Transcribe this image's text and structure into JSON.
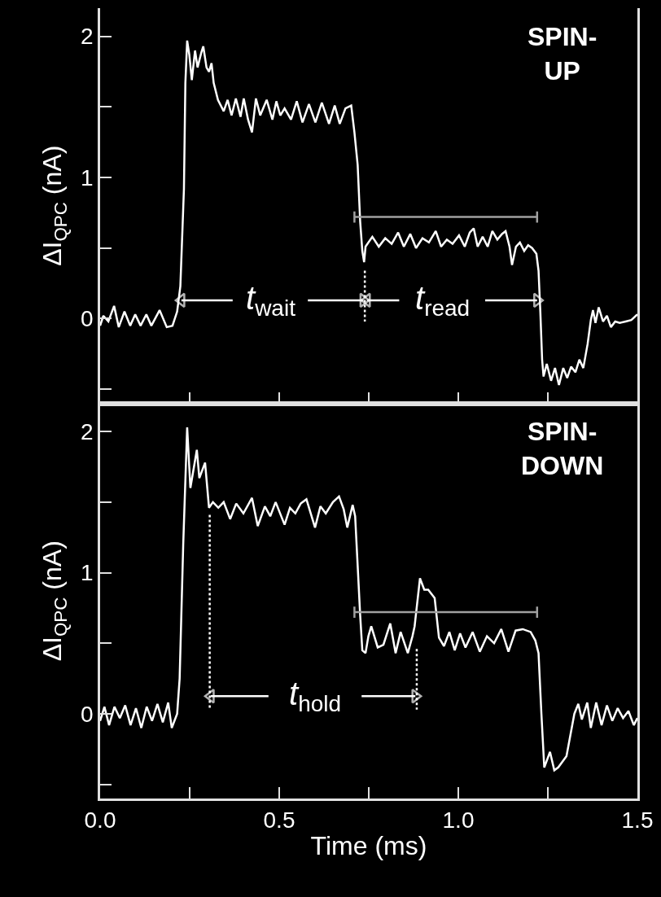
{
  "chart_data": [
    {
      "type": "line",
      "ylabel": "ΔI$_{QPC}$ (nA)",
      "line_style": "solid",
      "tick_labels": "y",
      "xlim": [
        0,
        1.5
      ],
      "xticks": [
        {
          "value": 0,
          "label": null
        },
        {
          "value": 0.25,
          "label": null
        },
        {
          "value": 0.5,
          "label": null
        },
        {
          "value": 0.75,
          "label": null
        },
        {
          "value": 1.0,
          "label": null
        },
        {
          "value": 1.25,
          "label": null
        },
        {
          "value": 1.5,
          "label": null
        }
      ],
      "ylim": [
        -0.6,
        2.2
      ],
      "yticks": [
        {
          "value": -0.5,
          "label": null
        },
        0,
        {
          "value": 0.5,
          "label": null
        },
        1,
        {
          "value": 1.5,
          "label": null
        },
        2
      ],
      "annotations": [
        "SPIN-\nUP",
        "t$_{wait}$",
        "t$_{read}$"
      ],
      "series": [
        {
          "type": "line",
          "color": "#ffffff",
          "x": [
            0,
            0.009,
            0.023,
            0.039,
            0.052,
            0.068,
            0.084,
            0.098,
            0.113,
            0.129,
            0.143,
            0.166,
            0.186,
            0.202,
            0.215,
            0.224,
            0.234,
            0.238,
            0.243,
            0.249,
            0.256,
            0.265,
            0.272,
            0.283,
            0.288,
            0.297,
            0.304,
            0.311,
            0.317,
            0.329,
            0.345,
            0.356,
            0.367,
            0.379,
            0.392,
            0.401,
            0.413,
            0.424,
            0.435,
            0.447,
            0.465,
            0.481,
            0.492,
            0.503,
            0.515,
            0.533,
            0.549,
            0.565,
            0.583,
            0.601,
            0.619,
            0.639,
            0.655,
            0.669,
            0.685,
            0.701,
            0.71,
            0.719,
            0.726,
            0.732,
            0.737,
            0.741,
            0.76,
            0.778,
            0.796,
            0.814,
            0.832,
            0.848,
            0.866,
            0.882,
            0.9,
            0.918,
            0.937,
            0.952,
            0.968,
            0.984,
            1.002,
            1.018,
            1.032,
            1.043,
            1.054,
            1.068,
            1.082,
            1.095,
            1.109,
            1.122,
            1.132,
            1.143,
            1.15,
            1.161,
            1.172,
            1.184,
            1.195,
            1.206,
            1.218,
            1.224,
            1.229,
            1.234,
            1.238,
            1.247,
            1.259,
            1.27,
            1.281,
            1.293,
            1.304,
            1.315,
            1.327,
            1.338,
            1.349,
            1.361,
            1.37,
            1.376,
            1.383,
            1.392,
            1.404,
            1.415,
            1.426,
            1.438,
            1.451,
            1.467,
            1.483,
            1.5
          ],
          "values": [
            -0.05,
            0.02,
            -0.02,
            0.09,
            -0.06,
            0.05,
            -0.05,
            0.03,
            -0.05,
            0.03,
            -0.05,
            0.06,
            -0.06,
            -0.05,
            0.05,
            0.23,
            0.92,
            1.67,
            1.97,
            1.87,
            1.69,
            1.9,
            1.78,
            1.89,
            1.93,
            1.78,
            1.75,
            1.81,
            1.67,
            1.55,
            1.47,
            1.55,
            1.44,
            1.56,
            1.43,
            1.56,
            1.41,
            1.32,
            1.56,
            1.44,
            1.55,
            1.41,
            1.54,
            1.44,
            1.49,
            1.41,
            1.54,
            1.39,
            1.52,
            1.39,
            1.53,
            1.38,
            1.51,
            1.38,
            1.49,
            1.51,
            1.32,
            1.09,
            0.69,
            0.48,
            0.4,
            0.51,
            0.58,
            0.51,
            0.57,
            0.53,
            0.61,
            0.51,
            0.6,
            0.5,
            0.57,
            0.54,
            0.62,
            0.51,
            0.56,
            0.53,
            0.59,
            0.51,
            0.61,
            0.64,
            0.51,
            0.58,
            0.51,
            0.62,
            0.56,
            0.6,
            0.62,
            0.51,
            0.38,
            0.51,
            0.54,
            0.48,
            0.52,
            0.5,
            0.46,
            0.34,
            0.05,
            -0.29,
            -0.41,
            -0.32,
            -0.44,
            -0.35,
            -0.47,
            -0.35,
            -0.42,
            -0.34,
            -0.38,
            -0.29,
            -0.35,
            -0.18,
            -0.01,
            0.06,
            -0.03,
            0.08,
            -0.02,
            0.02,
            -0.06,
            -0.02,
            -0.03,
            -0.02,
            -0.01,
            0.03
          ]
        },
        {
          "type": "line",
          "color": "#a0a0a0",
          "x": [
            0.71,
            0.71,
            0.71,
            1.22,
            1.22,
            1.22
          ],
          "values": [
            0.76,
            0.68,
            0.72,
            0.72,
            0.76,
            0.68
          ]
        },
        {
          "type": "line",
          "color": "#ffffff",
          "line_style": "dotted",
          "x": [
            0.739,
            0.739
          ],
          "values": [
            0.34,
            -0.02
          ]
        },
        {
          "type": "line",
          "color": "#ffffff",
          "marker": "triangle",
          "x": [
            0.37,
            0.227
          ],
          "values": [
            0.13,
            0.13
          ]
        },
        {
          "type": "line",
          "color": "#ffffff",
          "marker": "triangle",
          "x": [
            0.58,
            0.735
          ],
          "values": [
            0.13,
            0.13
          ]
        },
        {
          "type": "line",
          "color": "#ffffff",
          "marker": "triangle",
          "x": [
            0.835,
            0.745
          ],
          "values": [
            0.13,
            0.13
          ]
        },
        {
          "type": "line",
          "color": "#ffffff",
          "marker": "triangle",
          "x": [
            1.075,
            1.22
          ],
          "values": [
            0.13,
            0.13
          ]
        }
      ]
    },
    {
      "type": "line",
      "ylabel": "ΔI$_{QPC}$ (nA)",
      "xlabel": "Time (ms)",
      "line_style": "solid",
      "xlim": [
        0,
        1.5
      ],
      "xticks": [
        {
          "value": 0,
          "label": "0.0"
        },
        {
          "value": 0.25,
          "label": null
        },
        0.5,
        {
          "value": 0.75,
          "label": null
        },
        {
          "value": 1.0,
          "label": "1.0"
        },
        {
          "value": 1.25,
          "label": null
        },
        1.5
      ],
      "ylim": [
        -0.6,
        2.2
      ],
      "yticks": [
        {
          "value": -0.5,
          "label": null
        },
        0,
        {
          "value": 0.5,
          "label": null
        },
        1,
        {
          "value": 1.5,
          "label": null
        },
        2
      ],
      "annotations": [
        "SPIN-\nDOWN",
        "t$_{hold}$"
      ],
      "series": [
        {
          "type": "line",
          "color": "#ffffff",
          "x": [
            0,
            0.012,
            0.025,
            0.04,
            0.055,
            0.07,
            0.085,
            0.1,
            0.115,
            0.13,
            0.145,
            0.16,
            0.175,
            0.19,
            0.2,
            0.215,
            0.222,
            0.232,
            0.243,
            0.252,
            0.27,
            0.277,
            0.293,
            0.304,
            0.315,
            0.33,
            0.345,
            0.363,
            0.38,
            0.4,
            0.424,
            0.44,
            0.46,
            0.475,
            0.49,
            0.515,
            0.53,
            0.545,
            0.56,
            0.576,
            0.6,
            0.615,
            0.63,
            0.65,
            0.667,
            0.68,
            0.69,
            0.705,
            0.712,
            0.719,
            0.726,
            0.732,
            0.741,
            0.749,
            0.757,
            0.775,
            0.791,
            0.81,
            0.825,
            0.839,
            0.859,
            0.872,
            0.878,
            0.893,
            0.905,
            0.916,
            0.934,
            0.946,
            0.96,
            0.975,
            0.99,
            1.005,
            1.02,
            1.04,
            1.06,
            1.08,
            1.1,
            1.12,
            1.14,
            1.16,
            1.18,
            1.202,
            1.215,
            1.224,
            1.232,
            1.24,
            1.256,
            1.268,
            1.279,
            1.302,
            1.324,
            1.335,
            1.345,
            1.36,
            1.37,
            1.385,
            1.4,
            1.415,
            1.43,
            1.445,
            1.46,
            1.475,
            1.49,
            1.5
          ],
          "values": [
            -0.05,
            0.05,
            -0.08,
            0.05,
            -0.03,
            0.06,
            -0.08,
            0.04,
            -0.1,
            0.05,
            -0.05,
            0.07,
            -0.06,
            0.08,
            -0.1,
            0.0,
            0.25,
            1.2,
            2.03,
            1.6,
            1.87,
            1.67,
            1.78,
            1.46,
            1.5,
            1.46,
            1.5,
            1.38,
            1.49,
            1.42,
            1.53,
            1.33,
            1.47,
            1.4,
            1.5,
            1.34,
            1.46,
            1.42,
            1.49,
            1.52,
            1.32,
            1.47,
            1.42,
            1.5,
            1.54,
            1.45,
            1.32,
            1.48,
            1.4,
            1.05,
            0.7,
            0.45,
            0.43,
            0.55,
            0.62,
            0.47,
            0.49,
            0.64,
            0.43,
            0.58,
            0.43,
            0.55,
            0.62,
            0.96,
            0.88,
            0.88,
            0.82,
            0.54,
            0.48,
            0.58,
            0.45,
            0.57,
            0.47,
            0.58,
            0.44,
            0.55,
            0.5,
            0.6,
            0.44,
            0.59,
            0.6,
            0.58,
            0.52,
            0.43,
            0.0,
            -0.38,
            -0.27,
            -0.4,
            -0.38,
            -0.3,
            0.0,
            0.07,
            -0.04,
            0.08,
            -0.1,
            0.08,
            -0.08,
            0.06,
            -0.05,
            0.04,
            -0.03,
            0.02,
            -0.08,
            -0.03
          ]
        },
        {
          "type": "line",
          "color": "#a0a0a0",
          "x": [
            0.71,
            0.71,
            0.71,
            1.22,
            1.22,
            1.22
          ],
          "values": [
            0.76,
            0.68,
            0.72,
            0.72,
            0.76,
            0.68
          ]
        },
        {
          "type": "line",
          "color": "#ffffff",
          "line_style": "dotted",
          "x": [
            0.306,
            0.306
          ],
          "values": [
            1.41,
            0.04
          ]
        },
        {
          "type": "line",
          "color": "#ffffff",
          "line_style": "dotted",
          "x": [
            0.884,
            0.884
          ],
          "values": [
            0.46,
            0.03
          ]
        },
        {
          "type": "line",
          "color": "#ffffff",
          "marker": "triangle",
          "x": [
            0.47,
            0.309
          ],
          "values": [
            0.125,
            0.125
          ]
        },
        {
          "type": "line",
          "color": "#ffffff",
          "marker": "triangle",
          "x": [
            0.73,
            0.88
          ],
          "values": [
            0.125,
            0.125
          ]
        }
      ]
    }
  ]
}
